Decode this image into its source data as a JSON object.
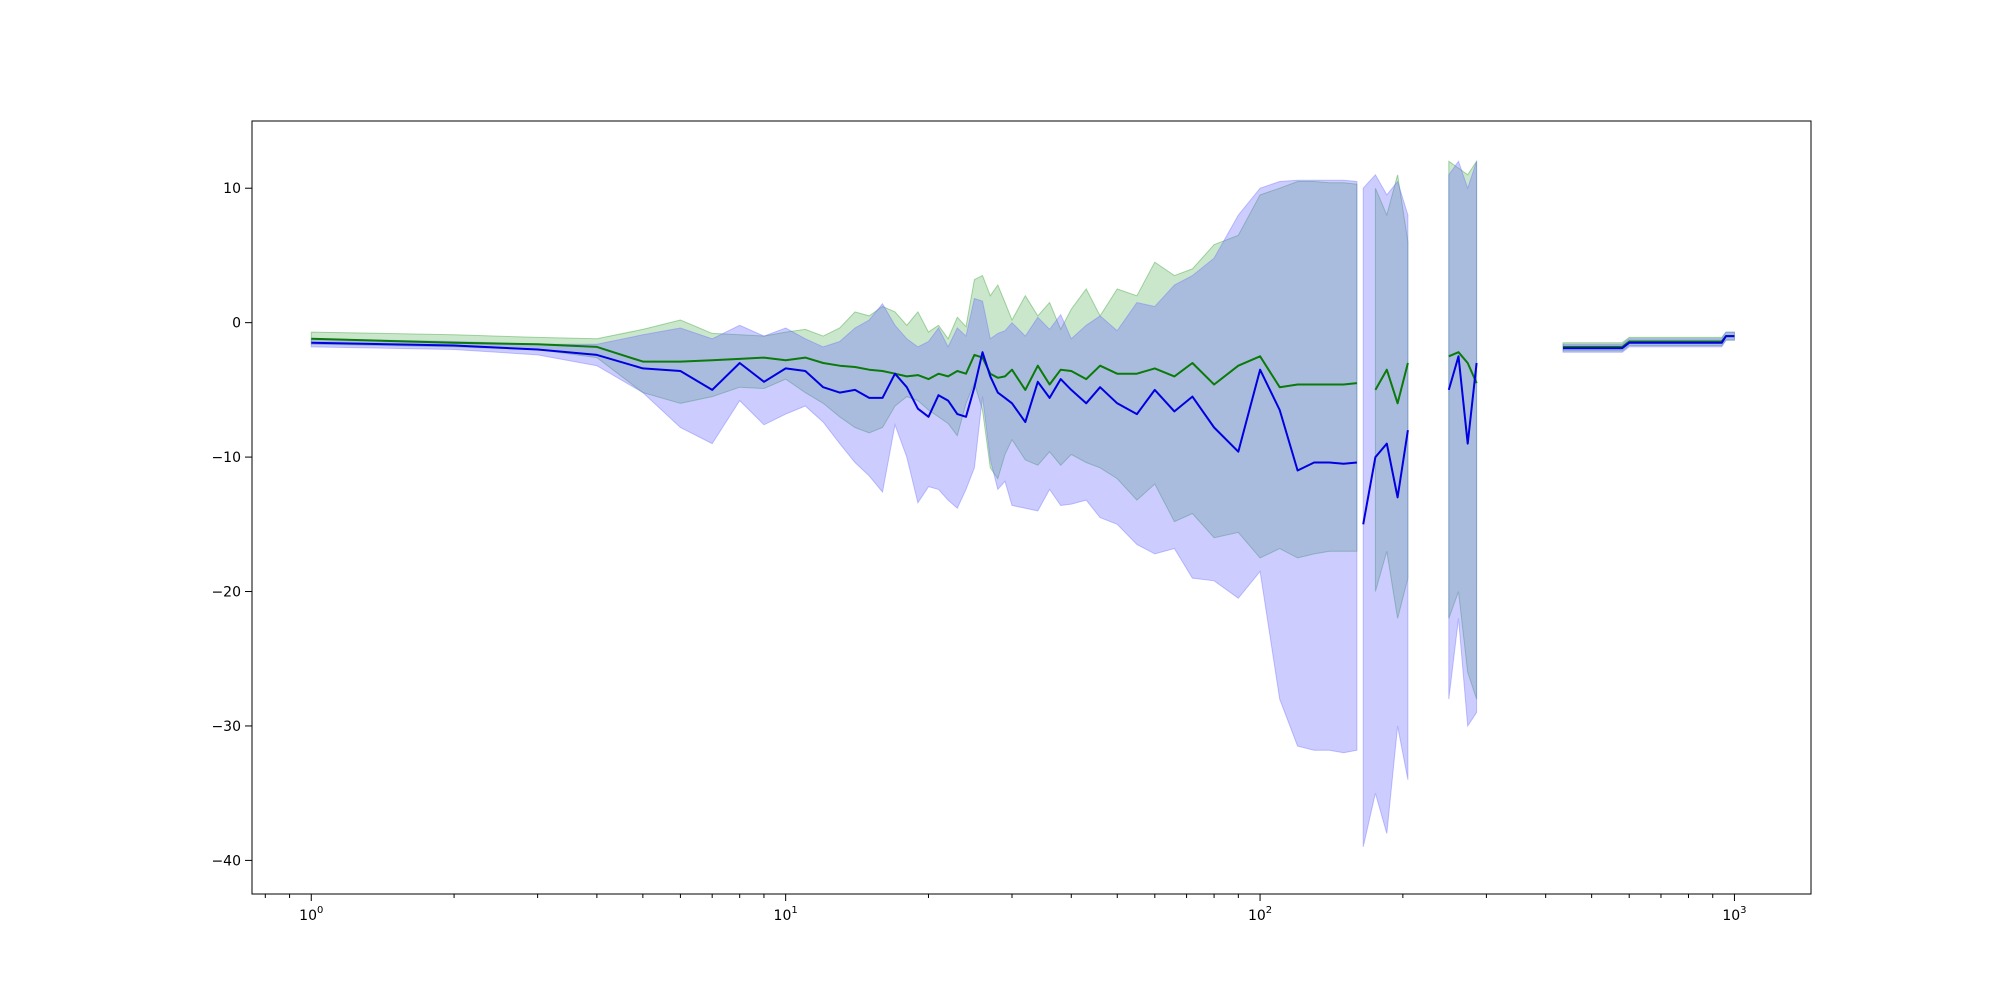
{
  "chart_data": {
    "type": "line",
    "title": "",
    "xlabel": "",
    "ylabel": "",
    "xscale": "log",
    "xlim": [
      0.75,
      1450
    ],
    "ylim": [
      -42.5,
      15
    ],
    "grid": false,
    "legend": "none",
    "x_ticks": [
      {
        "value": 1,
        "base": "10",
        "exp": "0"
      },
      {
        "value": 10,
        "base": "10",
        "exp": "1"
      },
      {
        "value": 100,
        "base": "10",
        "exp": "2"
      },
      {
        "value": 1000,
        "base": "10",
        "exp": "3"
      }
    ],
    "y_ticks": [
      {
        "value": 10,
        "label": "10"
      },
      {
        "value": 0,
        "label": "0"
      },
      {
        "value": -10,
        "label": "−10"
      },
      {
        "value": -20,
        "label": "−20"
      },
      {
        "value": -30,
        "label": "−30"
      },
      {
        "value": -40,
        "label": "−40"
      }
    ],
    "series": [
      {
        "color": "#0a7a0a",
        "band_color": "#2e9e2e",
        "segments": [
          {
            "x": [
              1,
              2,
              3,
              4,
              5,
              6,
              7,
              8,
              9,
              10,
              11,
              12,
              13,
              14,
              15,
              16,
              17,
              18,
              19,
              20,
              21,
              22,
              23,
              24,
              25,
              26,
              27,
              28,
              29,
              30,
              32,
              34,
              36,
              38,
              40,
              43,
              46,
              50,
              55,
              60,
              66,
              72,
              80,
              90,
              100,
              110,
              120,
              130,
              140,
              150,
              160
            ],
            "y": [
              -1.2,
              -1.5,
              -1.6,
              -1.8,
              -2.9,
              -2.9,
              -2.8,
              -2.7,
              -2.6,
              -2.8,
              -2.6,
              -3.0,
              -3.2,
              -3.3,
              -3.5,
              -3.6,
              -3.8,
              -4.0,
              -3.9,
              -4.2,
              -3.8,
              -4.0,
              -3.6,
              -3.8,
              -2.4,
              -2.6,
              -3.8,
              -4.1,
              -4.0,
              -3.5,
              -5.0,
              -3.2,
              -4.6,
              -3.5,
              -3.6,
              -4.2,
              -3.2,
              -3.8,
              -3.8,
              -3.4,
              -4.0,
              -3.0,
              -4.6,
              -3.2,
              -2.5,
              -4.8,
              -4.6,
              -4.6,
              -4.6,
              -4.6,
              -4.5
            ],
            "lower": [
              -1.6,
              -1.8,
              -2.0,
              -2.6,
              -5.2,
              -6.0,
              -5.5,
              -4.8,
              -4.9,
              -4.2,
              -5.2,
              -6.0,
              -7.0,
              -7.8,
              -8.2,
              -7.8,
              -6.2,
              -5.5,
              -5.8,
              -6.5,
              -7.0,
              -7.5,
              -8.4,
              -6.0,
              -4.5,
              -6.5,
              -10.8,
              -11.6,
              -9.8,
              -8.7,
              -10.2,
              -10.6,
              -9.6,
              -10.6,
              -9.8,
              -10.4,
              -10.8,
              -11.6,
              -13.2,
              -12.0,
              -14.8,
              -14.2,
              -16.0,
              -15.6,
              -17.5,
              -16.8,
              -17.5,
              -17.2,
              -17.0,
              -17.0,
              -17.0
            ],
            "upper": [
              -0.7,
              -0.9,
              -1.1,
              -1.2,
              -0.5,
              0.2,
              -0.8,
              -0.9,
              -1.0,
              -0.7,
              -0.5,
              -1.0,
              -0.4,
              0.8,
              0.5,
              1.2,
              0.8,
              -0.2,
              0.8,
              -0.7,
              -0.2,
              -1.2,
              0.4,
              -0.3,
              3.2,
              3.5,
              2.0,
              2.8,
              1.5,
              0.2,
              2.0,
              0.5,
              1.5,
              -0.5,
              1.0,
              2.5,
              0.5,
              2.5,
              2.0,
              4.5,
              3.5,
              4.0,
              5.8,
              6.5,
              9.5,
              10.0,
              10.5,
              10.5,
              10.4,
              10.4,
              10.3
            ]
          },
          {
            "x": [
              175,
              185,
              195,
              205
            ],
            "y": [
              -5.0,
              -3.5,
              -6.0,
              -3.0
            ],
            "lower": [
              -20.0,
              -17.0,
              -22.0,
              -19.0
            ],
            "upper": [
              10.0,
              8.0,
              11.0,
              6.0
            ]
          },
          {
            "x": [
              250,
              262,
              274,
              286
            ],
            "y": [
              -2.5,
              -2.2,
              -3.0,
              -4.5
            ],
            "lower": [
              -22.0,
              -20.0,
              -26.0,
              -28.0
            ],
            "upper": [
              12.0,
              11.5,
              11.0,
              12.0
            ]
          },
          {
            "x": [
              435,
              480,
              540,
              580,
              600,
              700,
              800,
              900,
              940,
              960,
              1000
            ],
            "y": [
              -1.8,
              -1.8,
              -1.8,
              -1.8,
              -1.4,
              -1.4,
              -1.4,
              -1.4,
              -1.4,
              -1.0,
              -1.0
            ],
            "lower": [
              -2.1,
              -2.1,
              -2.1,
              -2.1,
              -1.7,
              -1.7,
              -1.7,
              -1.7,
              -1.7,
              -1.3,
              -1.3
            ],
            "upper": [
              -1.5,
              -1.5,
              -1.5,
              -1.5,
              -1.1,
              -1.1,
              -1.1,
              -1.1,
              -1.1,
              -0.7,
              -0.7
            ]
          }
        ]
      },
      {
        "color": "#0000e0",
        "band_color": "#6e6eff",
        "segments": [
          {
            "x": [
              1,
              2,
              3,
              4,
              5,
              6,
              7,
              8,
              9,
              10,
              11,
              12,
              13,
              14,
              15,
              16,
              17,
              18,
              19,
              20,
              21,
              22,
              23,
              24,
              25,
              26,
              27,
              28,
              29,
              30,
              32,
              34,
              36,
              38,
              40,
              43,
              46,
              50,
              55,
              60,
              66,
              72,
              80,
              90,
              100,
              110,
              120,
              130,
              140,
              150,
              160
            ],
            "y": [
              -1.5,
              -1.7,
              -2.0,
              -2.4,
              -3.4,
              -3.6,
              -5.0,
              -3.0,
              -4.4,
              -3.4,
              -3.6,
              -4.8,
              -5.2,
              -5.0,
              -5.6,
              -5.6,
              -3.8,
              -4.8,
              -6.4,
              -7.0,
              -5.4,
              -5.8,
              -6.8,
              -7.0,
              -4.8,
              -2.2,
              -4.0,
              -5.2,
              -5.6,
              -6.0,
              -7.4,
              -4.4,
              -5.6,
              -4.2,
              -5.0,
              -6.0,
              -4.8,
              -6.0,
              -6.8,
              -5.0,
              -6.6,
              -5.5,
              -7.8,
              -9.6,
              -3.5,
              -6.5,
              -11.0,
              -10.4,
              -10.4,
              -10.5,
              -10.4
            ],
            "lower": [
              -1.8,
              -2.0,
              -2.4,
              -3.2,
              -5.2,
              -7.8,
              -9.0,
              -5.8,
              -7.6,
              -6.8,
              -6.2,
              -7.4,
              -9.0,
              -10.4,
              -11.4,
              -12.6,
              -7.6,
              -10.0,
              -13.4,
              -12.2,
              -12.4,
              -13.2,
              -13.8,
              -12.4,
              -10.8,
              -5.5,
              -10.2,
              -12.4,
              -11.8,
              -13.6,
              -13.8,
              -14.0,
              -12.4,
              -13.6,
              -13.5,
              -13.2,
              -14.5,
              -15.0,
              -16.5,
              -17.2,
              -16.8,
              -19.0,
              -19.2,
              -20.5,
              -18.5,
              -28.0,
              -31.5,
              -31.8,
              -31.8,
              -32.0,
              -31.8
            ],
            "upper": [
              -1.2,
              -1.4,
              -1.6,
              -1.6,
              -0.9,
              -0.4,
              -1.2,
              -0.2,
              -1.0,
              -0.4,
              -1.2,
              -1.8,
              -1.4,
              -0.4,
              0.2,
              1.4,
              -0.2,
              -1.2,
              -1.8,
              -1.4,
              -0.4,
              -1.8,
              -0.4,
              -1.0,
              1.8,
              1.6,
              -1.2,
              -0.8,
              -0.6,
              0.0,
              -1.0,
              0.4,
              -0.5,
              0.6,
              -1.2,
              -0.2,
              0.5,
              -0.6,
              1.5,
              1.2,
              2.8,
              3.5,
              4.8,
              8.0,
              10.0,
              10.5,
              10.6,
              10.6,
              10.6,
              10.6,
              10.5
            ]
          },
          {
            "x": [
              165,
              175,
              185,
              195,
              205
            ],
            "y": [
              -15.0,
              -10.0,
              -9.0,
              -13.0,
              -8.0
            ],
            "lower": [
              -39.0,
              -35.0,
              -38.0,
              -30.0,
              -34.0
            ],
            "upper": [
              10.0,
              11.0,
              9.5,
              10.5,
              8.0
            ]
          },
          {
            "x": [
              250,
              262,
              274,
              286
            ],
            "y": [
              -5.0,
              -2.5,
              -9.0,
              -3.0
            ],
            "lower": [
              -28.0,
              -22.0,
              -30.0,
              -29.0
            ],
            "upper": [
              11.0,
              12.0,
              10.0,
              12.0
            ]
          },
          {
            "x": [
              435,
              480,
              540,
              580,
              600,
              700,
              800,
              900,
              940,
              960,
              1000
            ],
            "y": [
              -1.9,
              -1.9,
              -1.9,
              -1.9,
              -1.5,
              -1.5,
              -1.5,
              -1.5,
              -1.5,
              -1.0,
              -1.0
            ],
            "lower": [
              -2.2,
              -2.2,
              -2.2,
              -2.2,
              -1.8,
              -1.8,
              -1.8,
              -1.8,
              -1.8,
              -1.3,
              -1.3
            ],
            "upper": [
              -1.6,
              -1.6,
              -1.6,
              -1.6,
              -1.2,
              -1.2,
              -1.2,
              -1.2,
              -1.2,
              -0.7,
              -0.7
            ]
          }
        ]
      }
    ]
  }
}
